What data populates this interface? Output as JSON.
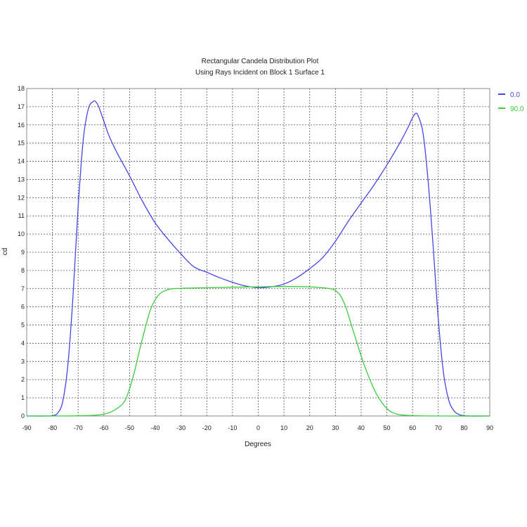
{
  "chart_data": {
    "type": "line",
    "title": "Rectangular Candela Distribution Plot",
    "subtitle": "Using Rays Incident on Block 1 Surface 1",
    "xlabel": "Degrees",
    "ylabel": "cd",
    "xlim": [
      -90,
      90
    ],
    "ylim": [
      0,
      18
    ],
    "x_ticks": [
      -90,
      -80,
      -70,
      -60,
      -50,
      -40,
      -30,
      -20,
      -10,
      0,
      10,
      20,
      30,
      40,
      50,
      60,
      70,
      80,
      90
    ],
    "y_ticks": [
      0,
      1,
      2,
      3,
      4,
      5,
      6,
      7,
      8,
      9,
      10,
      11,
      12,
      13,
      14,
      15,
      16,
      17,
      18
    ],
    "grid": true,
    "legend_position": "top-right",
    "series": [
      {
        "name": "0.0",
        "color": "#4646e6",
        "x": [
          -90,
          -82,
          -80,
          -78,
          -76,
          -74,
          -72,
          -70,
          -68,
          -66,
          -64,
          -63,
          -62,
          -60,
          -58,
          -55,
          -50,
          -45,
          -40,
          -35,
          -30,
          -25,
          -20,
          -15,
          -10,
          -5,
          0,
          5,
          10,
          15,
          20,
          25,
          30,
          35,
          40,
          45,
          50,
          55,
          58,
          60,
          61,
          62,
          64,
          66,
          68,
          70,
          72,
          74,
          76,
          78,
          80,
          82,
          90
        ],
        "y": [
          0,
          0,
          0.02,
          0.15,
          0.8,
          2.8,
          6.6,
          11.5,
          15.2,
          16.9,
          17.3,
          17.25,
          17.0,
          16.2,
          15.4,
          14.5,
          13.2,
          11.8,
          10.6,
          9.7,
          8.9,
          8.2,
          7.9,
          7.6,
          7.35,
          7.15,
          7.05,
          7.1,
          7.25,
          7.6,
          8.1,
          8.7,
          9.6,
          10.7,
          11.7,
          12.7,
          13.8,
          15.0,
          15.8,
          16.4,
          16.6,
          16.55,
          15.6,
          13.0,
          9.3,
          5.3,
          2.4,
          0.9,
          0.3,
          0.08,
          0.02,
          0,
          0
        ]
      },
      {
        "name": "90.0",
        "color": "#3ccc3c",
        "x": [
          -90,
          -70,
          -60,
          -55,
          -52,
          -50,
          -48,
          -46,
          -44,
          -42,
          -40,
          -38,
          -36,
          -34,
          -30,
          -20,
          -10,
          0,
          10,
          20,
          25,
          28,
          30,
          32,
          34,
          36,
          38,
          40,
          42,
          44,
          46,
          48,
          50,
          52,
          55,
          60,
          70,
          90
        ],
        "y": [
          0,
          0.01,
          0.1,
          0.4,
          0.8,
          1.5,
          2.5,
          3.7,
          4.8,
          5.8,
          6.4,
          6.75,
          6.9,
          6.98,
          7.02,
          7.05,
          7.08,
          7.1,
          7.12,
          7.1,
          7.05,
          7.0,
          6.9,
          6.6,
          6.0,
          5.1,
          4.2,
          3.3,
          2.5,
          1.8,
          1.2,
          0.75,
          0.4,
          0.2,
          0.07,
          0.02,
          0,
          0
        ]
      }
    ]
  }
}
